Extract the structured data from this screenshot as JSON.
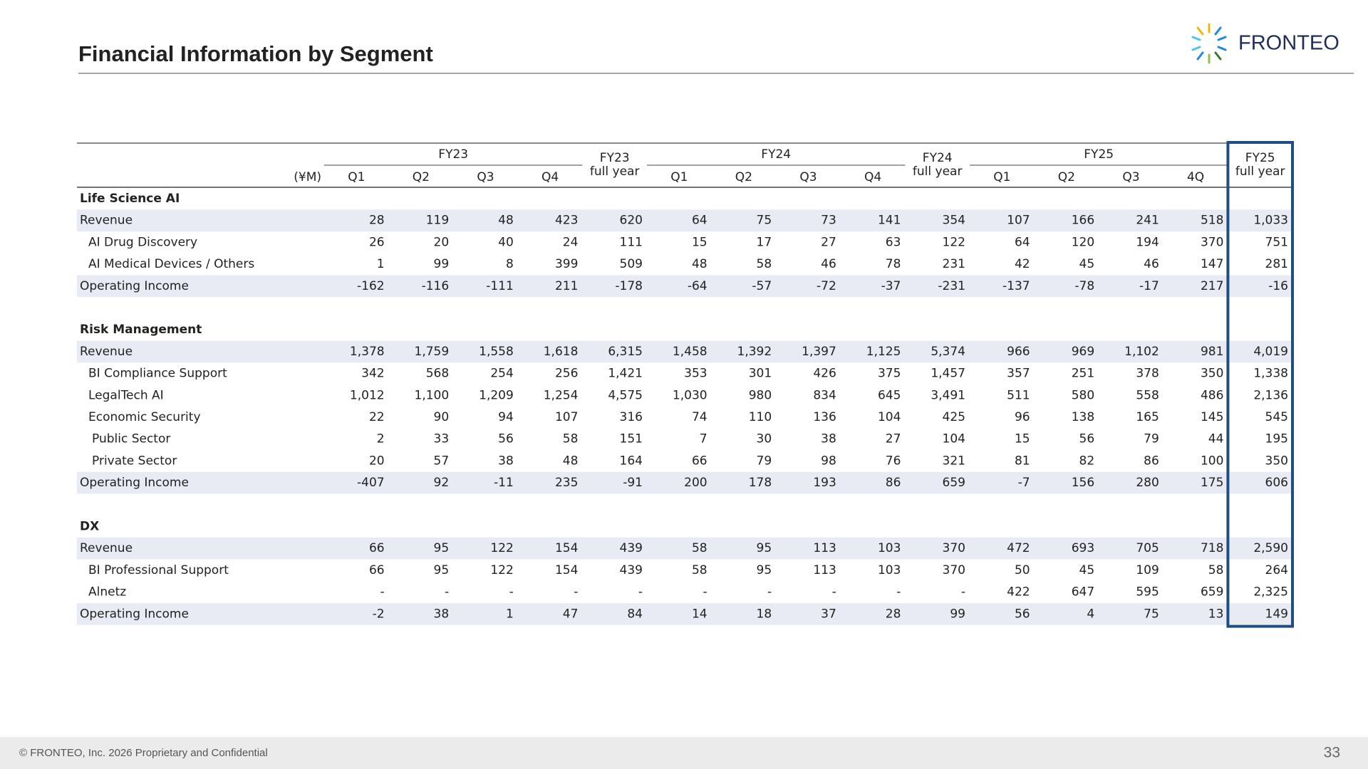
{
  "header": {
    "title": "Financial Information by Segment"
  },
  "logo": {
    "text": "FRONTEO"
  },
  "table": {
    "unit": "(¥M)",
    "columns": [
      {
        "group": "FY23",
        "quarters": [
          "Q1",
          "Q2",
          "Q3",
          "Q4"
        ],
        "full_year": [
          "FY23",
          "full year"
        ]
      },
      {
        "group": "FY24",
        "quarters": [
          "Q1",
          "Q2",
          "Q3",
          "Q4"
        ],
        "full_year": [
          "FY24",
          "full year"
        ]
      },
      {
        "group": "FY25",
        "quarters": [
          "Q1",
          "Q2",
          "Q3",
          "4Q"
        ],
        "full_year": [
          "FY25",
          "full year"
        ]
      }
    ],
    "sections": [
      {
        "title": "Life Science AI",
        "rows": [
          {
            "label": "Revenue",
            "level": 0,
            "shade": true,
            "values": [
              "28",
              "119",
              "48",
              "423",
              "620",
              "64",
              "75",
              "73",
              "141",
              "354",
              "107",
              "166",
              "241",
              "518",
              "1,033"
            ]
          },
          {
            "label": "AI Drug Discovery",
            "level": 1,
            "shade": false,
            "values": [
              "26",
              "20",
              "40",
              "24",
              "111",
              "15",
              "17",
              "27",
              "63",
              "122",
              "64",
              "120",
              "194",
              "370",
              "751"
            ]
          },
          {
            "label": "AI Medical Devices / Others",
            "level": 1,
            "shade": false,
            "values": [
              "1",
              "99",
              "8",
              "399",
              "509",
              "48",
              "58",
              "46",
              "78",
              "231",
              "42",
              "45",
              "46",
              "147",
              "281"
            ]
          },
          {
            "label": "Operating Income",
            "level": 0,
            "shade": true,
            "values": [
              "-162",
              "-116",
              "-111",
              "211",
              "-178",
              "-64",
              "-57",
              "-72",
              "-37",
              "-231",
              "-137",
              "-78",
              "-17",
              "217",
              "-16"
            ]
          }
        ]
      },
      {
        "title": "Risk Management",
        "rows": [
          {
            "label": "Revenue",
            "level": 0,
            "shade": true,
            "values": [
              "1,378",
              "1,759",
              "1,558",
              "1,618",
              "6,315",
              "1,458",
              "1,392",
              "1,397",
              "1,125",
              "5,374",
              "966",
              "969",
              "1,102",
              "981",
              "4,019"
            ]
          },
          {
            "label": "BI Compliance Support",
            "level": 1,
            "shade": false,
            "values": [
              "342",
              "568",
              "254",
              "256",
              "1,421",
              "353",
              "301",
              "426",
              "375",
              "1,457",
              "357",
              "251",
              "378",
              "350",
              "1,338"
            ]
          },
          {
            "label": "LegalTech AI",
            "level": 1,
            "shade": false,
            "values": [
              "1,012",
              "1,100",
              "1,209",
              "1,254",
              "4,575",
              "1,030",
              "980",
              "834",
              "645",
              "3,491",
              "511",
              "580",
              "558",
              "486",
              "2,136"
            ]
          },
          {
            "label": "Economic Security",
            "level": 1,
            "shade": false,
            "values": [
              "22",
              "90",
              "94",
              "107",
              "316",
              "74",
              "110",
              "136",
              "104",
              "425",
              "96",
              "138",
              "165",
              "145",
              "545"
            ]
          },
          {
            "label": "Public Sector",
            "level": 2,
            "shade": false,
            "values": [
              "2",
              "33",
              "56",
              "58",
              "151",
              "7",
              "30",
              "38",
              "27",
              "104",
              "15",
              "56",
              "79",
              "44",
              "195"
            ]
          },
          {
            "label": "Private Sector",
            "level": 2,
            "shade": false,
            "values": [
              "20",
              "57",
              "38",
              "48",
              "164",
              "66",
              "79",
              "98",
              "76",
              "321",
              "81",
              "82",
              "86",
              "100",
              "350"
            ]
          },
          {
            "label": "Operating Income",
            "level": 0,
            "shade": true,
            "values": [
              "-407",
              "92",
              "-11",
              "235",
              "-91",
              "200",
              "178",
              "193",
              "86",
              "659",
              "-7",
              "156",
              "280",
              "175",
              "606"
            ]
          }
        ]
      },
      {
        "title": "DX",
        "rows": [
          {
            "label": "Revenue",
            "level": 0,
            "shade": true,
            "values": [
              "66",
              "95",
              "122",
              "154",
              "439",
              "58",
              "95",
              "113",
              "103",
              "370",
              "472",
              "693",
              "705",
              "718",
              "2,590"
            ]
          },
          {
            "label": "BI Professional Support",
            "level": 1,
            "shade": false,
            "values": [
              "66",
              "95",
              "122",
              "154",
              "439",
              "58",
              "95",
              "113",
              "103",
              "370",
              "50",
              "45",
              "109",
              "58",
              "264"
            ]
          },
          {
            "label": "Alnetz",
            "level": 1,
            "shade": false,
            "values": [
              "-",
              "-",
              "-",
              "-",
              "-",
              "-",
              "-",
              "-",
              "-",
              "-",
              "422",
              "647",
              "595",
              "659",
              "2,325"
            ]
          },
          {
            "label": "Operating Income",
            "level": 0,
            "shade": true,
            "values": [
              "-2",
              "38",
              "1",
              "47",
              "84",
              "14",
              "18",
              "37",
              "28",
              "99",
              "56",
              "4",
              "75",
              "13",
              "149"
            ]
          }
        ]
      }
    ]
  },
  "footer": {
    "copyright": "© FRONTEO, Inc. 2026  Proprietary and Confidential",
    "page": "33"
  }
}
